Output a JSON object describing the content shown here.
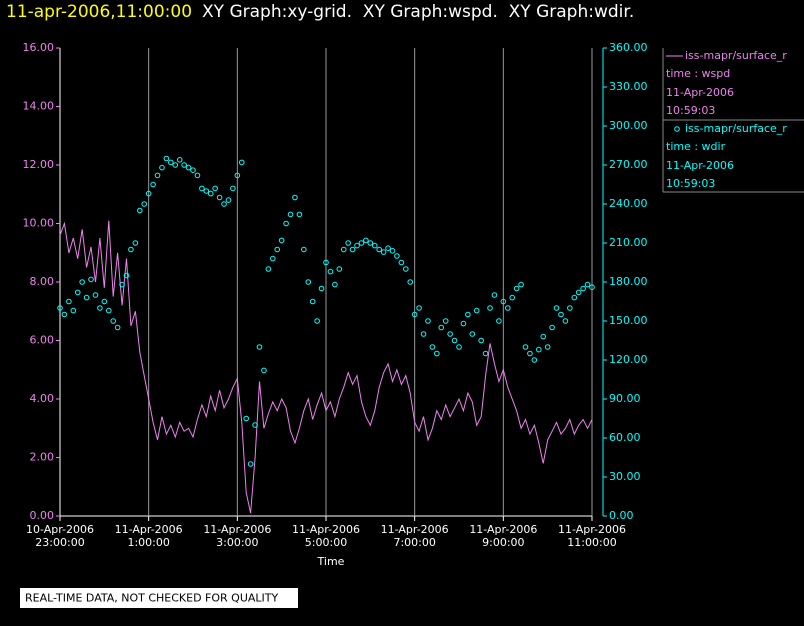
{
  "chart_data": {
    "type": "line",
    "timestamp": "11-apr-2006,11:00:00",
    "title": "XY Graph:xy-grid.  XY Graph:wspd.  XY Graph:wdir.",
    "xlabel": "Time",
    "note": "REAL-TIME DATA, NOT CHECKED FOR QUALITY",
    "grid": true,
    "xlim": [
      0,
      12
    ],
    "xticks": [
      {
        "value": 0,
        "label": [
          "10-Apr-2006",
          "23:00:00"
        ]
      },
      {
        "value": 2,
        "label": [
          "11-Apr-2006",
          "1:00:00"
        ]
      },
      {
        "value": 4,
        "label": [
          "11-Apr-2006",
          "3:00:00"
        ]
      },
      {
        "value": 6,
        "label": [
          "11-Apr-2006",
          "5:00:00"
        ]
      },
      {
        "value": 8,
        "label": [
          "11-Apr-2006",
          "7:00:00"
        ]
      },
      {
        "value": 10,
        "label": [
          "11-Apr-2006",
          "9:00:00"
        ]
      },
      {
        "value": 12,
        "label": [
          "11-Apr-2006",
          "11:00:00"
        ]
      }
    ],
    "ylim": [
      0,
      16
    ],
    "yticks": [
      {
        "value": 0,
        "label": "0.00"
      },
      {
        "value": 2,
        "label": "2.00"
      },
      {
        "value": 4,
        "label": "4.00"
      },
      {
        "value": 6,
        "label": "6.00"
      },
      {
        "value": 8,
        "label": "8.00"
      },
      {
        "value": 10,
        "label": "10.00"
      },
      {
        "value": 12,
        "label": "12.00"
      },
      {
        "value": 14,
        "label": "14.00"
      },
      {
        "value": 16,
        "label": "16.00"
      }
    ],
    "y2lim": [
      0,
      360
    ],
    "y2ticks": [
      {
        "value": 0,
        "label": "0.00"
      },
      {
        "value": 30,
        "label": "30.00"
      },
      {
        "value": 60,
        "label": "60.00"
      },
      {
        "value": 90,
        "label": "90.00"
      },
      {
        "value": 120,
        "label": "120.00"
      },
      {
        "value": 150,
        "label": "150.00"
      },
      {
        "value": 180,
        "label": "180.00"
      },
      {
        "value": 210,
        "label": "210.00"
      },
      {
        "value": 240,
        "label": "240.00"
      },
      {
        "value": 270,
        "label": "270.00"
      },
      {
        "value": 300,
        "label": "300.00"
      },
      {
        "value": 330,
        "label": "330.00"
      },
      {
        "value": 360,
        "label": "360.00"
      }
    ],
    "x": [
      0,
      0.1,
      0.2,
      0.3,
      0.4,
      0.5,
      0.6,
      0.7,
      0.8,
      0.9,
      1,
      1.1,
      1.2,
      1.3,
      1.4,
      1.5,
      1.6,
      1.7,
      1.8,
      1.9,
      2,
      2.1,
      2.2,
      2.3,
      2.4,
      2.5,
      2.6,
      2.7,
      2.8,
      2.9,
      3,
      3.1,
      3.2,
      3.3,
      3.4,
      3.5,
      3.6,
      3.7,
      3.8,
      3.9,
      4,
      4.1,
      4.2,
      4.3,
      4.4,
      4.5,
      4.6,
      4.7,
      4.8,
      4.9,
      5,
      5.1,
      5.2,
      5.3,
      5.4,
      5.5,
      5.6,
      5.7,
      5.8,
      5.9,
      6,
      6.1,
      6.2,
      6.3,
      6.4,
      6.5,
      6.6,
      6.7,
      6.8,
      6.9,
      7,
      7.1,
      7.2,
      7.3,
      7.4,
      7.5,
      7.6,
      7.7,
      7.8,
      7.9,
      8,
      8.1,
      8.2,
      8.3,
      8.4,
      8.5,
      8.6,
      8.7,
      8.8,
      8.9,
      9,
      9.1,
      9.2,
      9.3,
      9.4,
      9.5,
      9.6,
      9.7,
      9.8,
      9.9,
      10,
      10.1,
      10.2,
      10.3,
      10.4,
      10.5,
      10.6,
      10.7,
      10.8,
      10.9,
      11,
      11.1,
      11.2,
      11.3,
      11.4,
      11.5,
      11.6,
      11.7,
      11.8,
      11.9,
      12
    ],
    "series": [
      {
        "name": "iss-mapr/surface_r",
        "color": "#ee82ee",
        "style": "line",
        "axis": "y",
        "label": "time : wspd",
        "date": "11-Apr-2006",
        "time": "10:59:03",
        "values": [
          9.6,
          10.0,
          9.0,
          9.5,
          8.8,
          9.8,
          8.5,
          9.2,
          8.0,
          9.5,
          7.8,
          10.1,
          7.5,
          9.0,
          7.2,
          8.8,
          6.5,
          7.0,
          5.6,
          4.8,
          4.0,
          3.2,
          2.6,
          3.4,
          2.8,
          3.1,
          2.7,
          3.2,
          2.9,
          3.0,
          2.7,
          3.3,
          3.8,
          3.4,
          4.1,
          3.6,
          4.3,
          3.7,
          4.0,
          4.4,
          4.7,
          3.2,
          0.8,
          0.1,
          2.0,
          4.6,
          3.0,
          3.5,
          3.9,
          3.6,
          4.0,
          3.7,
          2.9,
          2.5,
          3.0,
          3.6,
          4.0,
          3.3,
          3.8,
          4.2,
          3.6,
          3.9,
          3.4,
          4.0,
          4.4,
          4.9,
          4.5,
          4.8,
          3.9,
          3.4,
          3.1,
          3.6,
          4.4,
          4.9,
          5.2,
          4.6,
          5.0,
          4.5,
          4.8,
          4.2,
          3.2,
          2.9,
          3.4,
          2.6,
          3.0,
          3.6,
          3.3,
          3.8,
          3.4,
          3.7,
          4.0,
          3.6,
          4.2,
          3.9,
          3.1,
          3.4,
          4.8,
          5.9,
          5.2,
          4.6,
          5.0,
          4.4,
          4.0,
          3.6,
          3.0,
          3.3,
          2.8,
          3.1,
          2.5,
          1.8,
          2.6,
          2.9,
          3.2,
          2.8,
          3.0,
          3.3,
          2.8,
          3.1,
          3.3,
          3.0,
          3.3
        ]
      },
      {
        "name": "iss-mapr/surface_r",
        "color": "#00ffff",
        "style": "points",
        "axis": "y2",
        "label": "time : wdir",
        "date": "11-Apr-2006",
        "time": "10:59:03",
        "values": [
          160,
          155,
          165,
          158,
          172,
          180,
          168,
          182,
          170,
          160,
          165,
          158,
          150,
          145,
          178,
          185,
          205,
          210,
          235,
          240,
          248,
          255,
          262,
          268,
          275,
          272,
          270,
          274,
          270,
          268,
          266,
          262,
          252,
          250,
          248,
          252,
          245,
          240,
          243,
          252,
          262,
          272,
          75,
          40,
          70,
          130,
          112,
          190,
          198,
          205,
          212,
          225,
          232,
          245,
          232,
          205,
          180,
          165,
          150,
          175,
          195,
          188,
          178,
          190,
          205,
          210,
          205,
          208,
          210,
          212,
          210,
          208,
          205,
          203,
          206,
          204,
          200,
          195,
          190,
          180,
          155,
          160,
          140,
          150,
          130,
          125,
          145,
          150,
          140,
          135,
          130,
          148,
          155,
          140,
          158,
          135,
          125,
          160,
          170,
          150,
          165,
          160,
          168,
          175,
          178,
          130,
          125,
          120,
          128,
          138,
          130,
          145,
          160,
          155,
          150,
          160,
          168,
          172,
          175,
          178,
          176
        ]
      }
    ]
  }
}
